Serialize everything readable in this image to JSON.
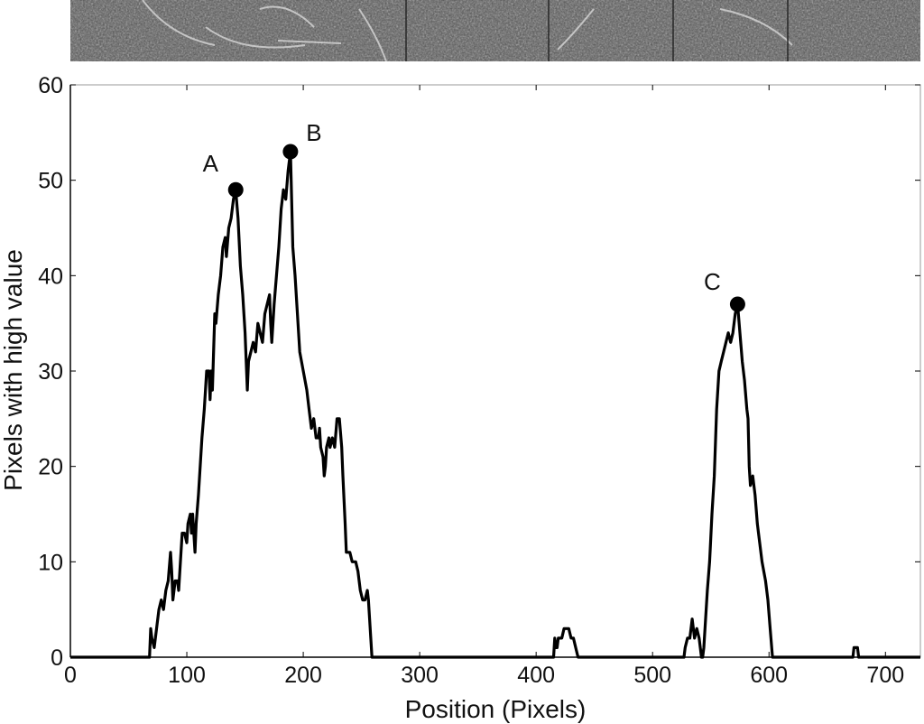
{
  "image_strip": {
    "description_icon": "grayscale-texture-strip"
  },
  "chart_data": {
    "type": "line",
    "xlabel": "Position (Pixels)",
    "ylabel": "Pixels with high value",
    "xlim": [
      0,
      730
    ],
    "ylim": [
      0,
      60
    ],
    "xticks": [
      0,
      100,
      200,
      300,
      400,
      500,
      600,
      700
    ],
    "yticks": [
      0,
      10,
      20,
      30,
      40,
      50,
      60
    ],
    "grid": false,
    "line_color": "#000000",
    "series": [
      {
        "points": [
          [
            0,
            0
          ],
          [
            68,
            0
          ],
          [
            69,
            3
          ],
          [
            70,
            2
          ],
          [
            72,
            1
          ],
          [
            74,
            3
          ],
          [
            76,
            5
          ],
          [
            78,
            6
          ],
          [
            80,
            5
          ],
          [
            82,
            7
          ],
          [
            84,
            8
          ],
          [
            86,
            11
          ],
          [
            87,
            9
          ],
          [
            88,
            6
          ],
          [
            90,
            8
          ],
          [
            92,
            8
          ],
          [
            93,
            7
          ],
          [
            94,
            9
          ],
          [
            96,
            13
          ],
          [
            98,
            13
          ],
          [
            100,
            12
          ],
          [
            101,
            14
          ],
          [
            103,
            15
          ],
          [
            104,
            13
          ],
          [
            105,
            15
          ],
          [
            107,
            11
          ],
          [
            108,
            14
          ],
          [
            110,
            17
          ],
          [
            113,
            23
          ],
          [
            115,
            26
          ],
          [
            117,
            30
          ],
          [
            119,
            30
          ],
          [
            120,
            27
          ],
          [
            121,
            30
          ],
          [
            122,
            28
          ],
          [
            124,
            36
          ],
          [
            125,
            35
          ],
          [
            127,
            38
          ],
          [
            129,
            40
          ],
          [
            131,
            43
          ],
          [
            133,
            44
          ],
          [
            134,
            42
          ],
          [
            136,
            45
          ],
          [
            138,
            46
          ],
          [
            140,
            48
          ],
          [
            142,
            49
          ],
          [
            144,
            46
          ],
          [
            146,
            41
          ],
          [
            148,
            38
          ],
          [
            150,
            34
          ],
          [
            152,
            28
          ],
          [
            153,
            31
          ],
          [
            155,
            32
          ],
          [
            157,
            33
          ],
          [
            159,
            32
          ],
          [
            161,
            35
          ],
          [
            163,
            34
          ],
          [
            165,
            33
          ],
          [
            167,
            36
          ],
          [
            169,
            37
          ],
          [
            171,
            38
          ],
          [
            172,
            35
          ],
          [
            173,
            33
          ],
          [
            175,
            37
          ],
          [
            177,
            40
          ],
          [
            179,
            43
          ],
          [
            181,
            47
          ],
          [
            183,
            49
          ],
          [
            185,
            48
          ],
          [
            187,
            51
          ],
          [
            189,
            53
          ],
          [
            190,
            48
          ],
          [
            191,
            43
          ],
          [
            193,
            40
          ],
          [
            195,
            36
          ],
          [
            197,
            32
          ],
          [
            200,
            30
          ],
          [
            203,
            28
          ],
          [
            205,
            26
          ],
          [
            207,
            24
          ],
          [
            209,
            25
          ],
          [
            211,
            23
          ],
          [
            213,
            23
          ],
          [
            214,
            24
          ],
          [
            215,
            22
          ],
          [
            217,
            21
          ],
          [
            218,
            19
          ],
          [
            219,
            20
          ],
          [
            220,
            22
          ],
          [
            222,
            23
          ],
          [
            223,
            22
          ],
          [
            225,
            23
          ],
          [
            227,
            22
          ],
          [
            229,
            25
          ],
          [
            231,
            25
          ],
          [
            233,
            22
          ],
          [
            234,
            19
          ],
          [
            236,
            14
          ],
          [
            237,
            11
          ],
          [
            240,
            11
          ],
          [
            242,
            10
          ],
          [
            245,
            10
          ],
          [
            247,
            9
          ],
          [
            249,
            7
          ],
          [
            251,
            6
          ],
          [
            253,
            6
          ],
          [
            255,
            7
          ],
          [
            256,
            6
          ],
          [
            257,
            4
          ],
          [
            258,
            2
          ],
          [
            259,
            0
          ],
          [
            415,
            0
          ],
          [
            416,
            2
          ],
          [
            417,
            1
          ],
          [
            418,
            1
          ],
          [
            419,
            2
          ],
          [
            422,
            2
          ],
          [
            424,
            3
          ],
          [
            428,
            3
          ],
          [
            430,
            2
          ],
          [
            432,
            2
          ],
          [
            434,
            1
          ],
          [
            436,
            0
          ],
          [
            527,
            0
          ],
          [
            528,
            1
          ],
          [
            530,
            2
          ],
          [
            532,
            2
          ],
          [
            534,
            4
          ],
          [
            535,
            3
          ],
          [
            536,
            2
          ],
          [
            538,
            3
          ],
          [
            540,
            2
          ],
          [
            542,
            0
          ],
          [
            543,
            0
          ],
          [
            544,
            1
          ],
          [
            545,
            3
          ],
          [
            547,
            7
          ],
          [
            549,
            10
          ],
          [
            551,
            15
          ],
          [
            553,
            19
          ],
          [
            555,
            26
          ],
          [
            557,
            30
          ],
          [
            559,
            31
          ],
          [
            561,
            32
          ],
          [
            563,
            33
          ],
          [
            565,
            34
          ],
          [
            567,
            33
          ],
          [
            569,
            34
          ],
          [
            571,
            36
          ],
          [
            573,
            37
          ],
          [
            575,
            34
          ],
          [
            577,
            31
          ],
          [
            579,
            29
          ],
          [
            581,
            26
          ],
          [
            582,
            25
          ],
          [
            583,
            20
          ],
          [
            584,
            18
          ],
          [
            586,
            19
          ],
          [
            588,
            17
          ],
          [
            590,
            14
          ],
          [
            592,
            12
          ],
          [
            594,
            10
          ],
          [
            597,
            8
          ],
          [
            599,
            6
          ],
          [
            601,
            3
          ],
          [
            603,
            0
          ],
          [
            672,
            0
          ],
          [
            673,
            1
          ],
          [
            676,
            1
          ],
          [
            677,
            0
          ],
          [
            730,
            0
          ]
        ]
      }
    ],
    "peaks": [
      {
        "label": "A",
        "x": 142,
        "y": 49
      },
      {
        "label": "B",
        "x": 189,
        "y": 53
      },
      {
        "label": "C",
        "x": 573,
        "y": 37
      }
    ]
  }
}
